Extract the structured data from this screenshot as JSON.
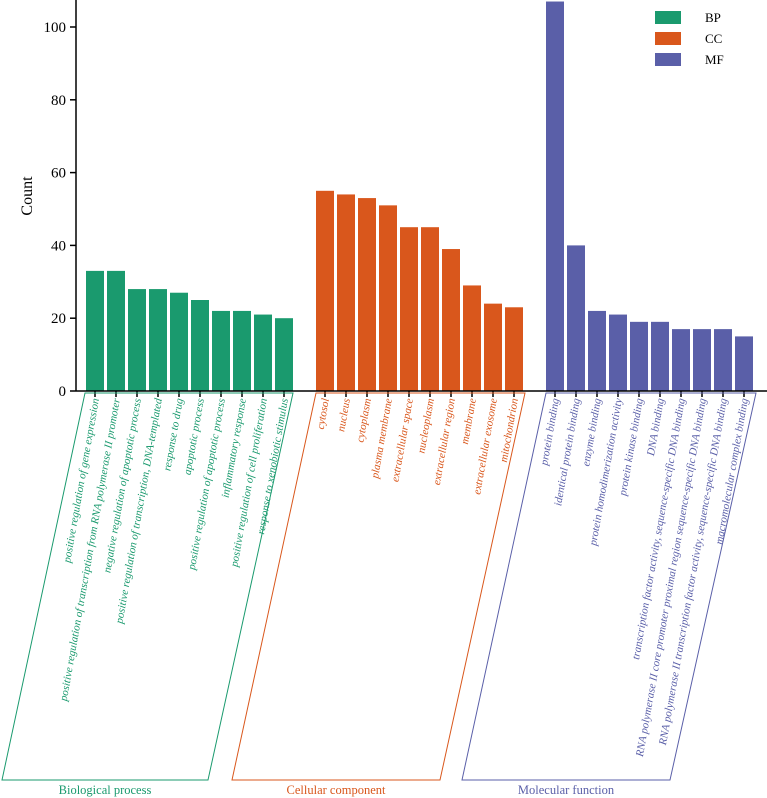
{
  "chart_data": {
    "type": "bar",
    "title": "",
    "xlabel": "",
    "ylabel": "Count",
    "ylim": [
      0,
      107
    ],
    "yticks": [
      0,
      20,
      40,
      60,
      80,
      100
    ],
    "legend_position": "top-right",
    "groups": [
      {
        "key": "BP",
        "name": "Biological process",
        "color": "#1a9a6e",
        "categories": [
          "positive regulation of gene expression",
          "positive regulation of transcription from RNA polymerase II promoter",
          "negative regulation of apoptotic process",
          "positive regulation of transcription, DNA-templated",
          "response to drug",
          "apoptotic process",
          "positive regulation of apoptotic process",
          "inflammatory response",
          "positive regulation of cell proliferation",
          "response to xenobiotic stimulus"
        ],
        "values": [
          33,
          33,
          28,
          28,
          27,
          25,
          22,
          22,
          21,
          20
        ]
      },
      {
        "key": "CC",
        "name": "Cellular component",
        "color": "#d9571c",
        "categories": [
          "cytosol",
          "nucleus",
          "cytoplasm",
          "plasma membrane",
          "extracellular space",
          "nucleoplasm",
          "extracellular region",
          "membrane",
          "extracellular exosome",
          "mitochondrion"
        ],
        "values": [
          55,
          54,
          53,
          51,
          45,
          45,
          39,
          29,
          24,
          23
        ]
      },
      {
        "key": "MF",
        "name": "Molecular function",
        "color": "#5a5fa8",
        "categories": [
          "protein binding",
          "identical protein binding",
          "enzyme binding",
          "protein homodimerization activity",
          "protein kinase binding",
          "DNA binding",
          "transcription factor activity, sequence-specific DNA binding",
          "RNA polymerase II core promoter proximal region sequence-specific DNA binding",
          "RNA polymerase II transcription factor activity, sequence-specific DNA binding",
          "macromolecular complex binding"
        ],
        "values": [
          107,
          40,
          22,
          21,
          19,
          19,
          17,
          17,
          17,
          15
        ]
      }
    ]
  }
}
